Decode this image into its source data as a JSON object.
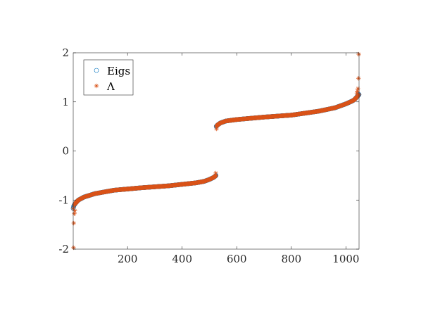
{
  "chart_data": {
    "type": "scatter",
    "title": "",
    "xlabel": "",
    "ylabel": "",
    "xlim": [
      1,
      1048
    ],
    "ylim": [
      -2,
      2
    ],
    "xticks": [
      200,
      400,
      600,
      800,
      1000
    ],
    "yticks": [
      -2,
      -1,
      0,
      1,
      2
    ],
    "xtick_labels": [
      "200",
      "400",
      "600",
      "800",
      "1000"
    ],
    "ytick_labels": [
      "-2",
      "-1",
      "0",
      "1",
      "2"
    ],
    "grid": false,
    "legend_position": "top-left",
    "series": [
      {
        "name": "Eigs",
        "marker": "circle",
        "color": "#0072BD",
        "n_points": 1048,
        "profile_x": [
          1,
          3,
          6,
          10,
          20,
          40,
          80,
          150,
          250,
          350,
          450,
          480,
          500,
          515,
          524,
          525,
          530,
          540,
          560,
          600,
          700,
          800,
          900,
          960,
          1000,
          1020,
          1030,
          1040,
          1045,
          1048
        ],
        "profile_y": [
          -1.17,
          -1.12,
          -1.09,
          -1.06,
          -1.0,
          -0.94,
          -0.87,
          -0.8,
          -0.75,
          -0.71,
          -0.65,
          -0.62,
          -0.58,
          -0.54,
          -0.5,
          0.5,
          0.53,
          0.57,
          0.61,
          0.64,
          0.69,
          0.73,
          0.81,
          0.88,
          0.96,
          1.01,
          1.04,
          1.1,
          1.13,
          1.15
        ]
      },
      {
        "name": "Λ",
        "marker": "asterisk",
        "color": "#D95319",
        "n_points": 1048,
        "profile_x": [
          1,
          3,
          6,
          10,
          20,
          40,
          80,
          150,
          250,
          350,
          450,
          480,
          500,
          515,
          524,
          525,
          530,
          540,
          560,
          600,
          700,
          800,
          900,
          960,
          1000,
          1020,
          1030,
          1040,
          1045,
          1048
        ],
        "profile_y": [
          -1.17,
          -1.12,
          -1.09,
          -1.06,
          -1.0,
          -0.94,
          -0.87,
          -0.8,
          -0.75,
          -0.71,
          -0.65,
          -0.62,
          -0.58,
          -0.54,
          -0.5,
          0.5,
          0.53,
          0.57,
          0.61,
          0.64,
          0.69,
          0.73,
          0.81,
          0.88,
          0.96,
          1.01,
          1.04,
          1.1,
          1.13,
          1.15
        ],
        "outliers": [
          {
            "x": 2,
            "y": -1.97
          },
          {
            "x": 3,
            "y": -1.47
          },
          {
            "x": 5,
            "y": -1.28
          },
          {
            "x": 7,
            "y": -1.22
          },
          {
            "x": 523,
            "y": -0.45
          },
          {
            "x": 526,
            "y": 0.45
          },
          {
            "x": 1040,
            "y": 1.18
          },
          {
            "x": 1042,
            "y": 1.22
          },
          {
            "x": 1044,
            "y": 1.27
          },
          {
            "x": 1046,
            "y": 1.48
          },
          {
            "x": 1047,
            "y": 1.97
          }
        ]
      }
    ]
  }
}
